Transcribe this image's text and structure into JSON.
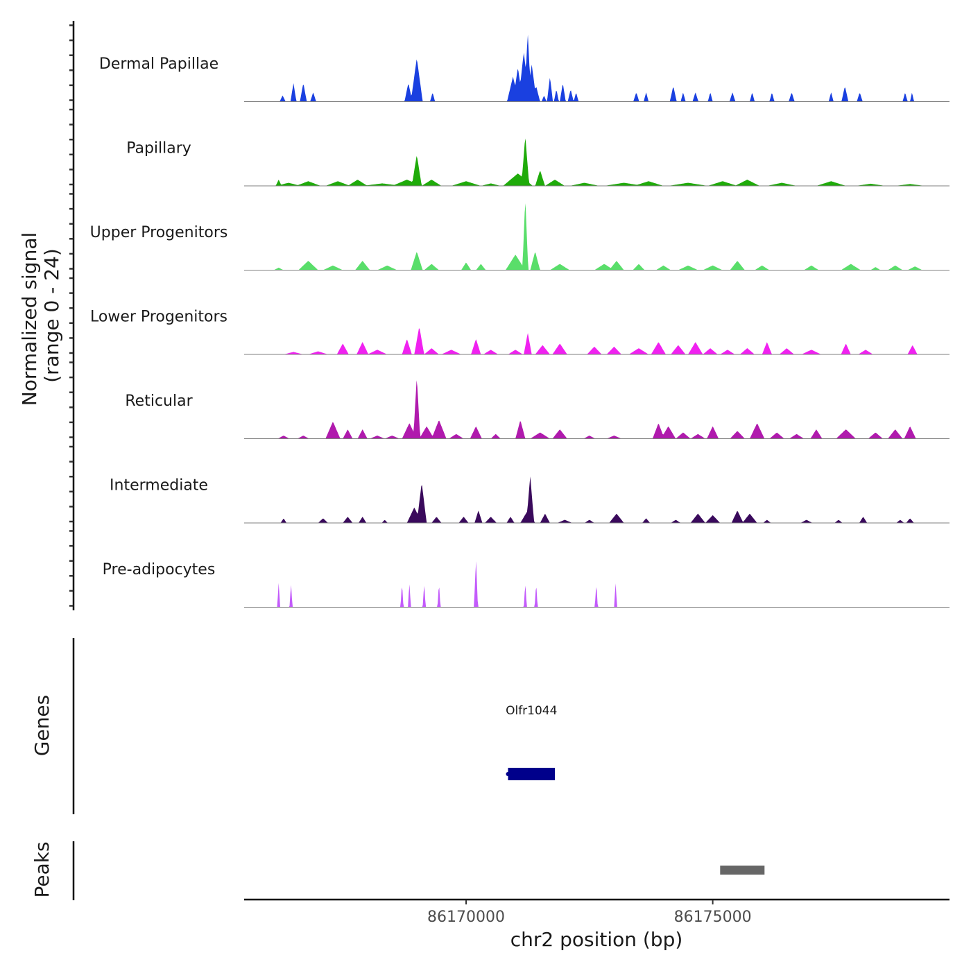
{
  "chart_data": {
    "type": "area",
    "title": "",
    "y_axis_title_line1": "Normalized signal",
    "y_axis_title_line2": "(range 0 - 24)",
    "ylim": [
      0,
      24
    ],
    "xlabel": "chr2 position (bp)",
    "xlim": [
      86165500,
      86179800
    ],
    "x_ticks": [
      86170000,
      86175000
    ],
    "x_tick_labels": [
      "86170000",
      "86175000"
    ],
    "tracks": [
      {
        "name": "Dermal Papillae",
        "color": "#1a40e0",
        "peaks": [
          [
            86166280,
            60,
            2
          ],
          [
            86166500,
            60,
            6
          ],
          [
            86166700,
            70,
            6
          ],
          [
            86166900,
            60,
            3
          ],
          [
            86168830,
            80,
            6
          ],
          [
            86169000,
            120,
            14
          ],
          [
            86169320,
            50,
            3
          ],
          [
            86170950,
            120,
            8
          ],
          [
            86171050,
            100,
            11
          ],
          [
            86171170,
            110,
            16
          ],
          [
            86171250,
            70,
            22
          ],
          [
            86171330,
            100,
            12
          ],
          [
            86171420,
            80,
            5
          ],
          [
            86171580,
            50,
            2
          ],
          [
            86171700,
            60,
            8
          ],
          [
            86171830,
            50,
            4
          ],
          [
            86171960,
            60,
            6
          ],
          [
            86172120,
            60,
            4
          ],
          [
            86172230,
            50,
            3
          ],
          [
            86173450,
            60,
            3
          ],
          [
            86173650,
            50,
            3
          ],
          [
            86174200,
            70,
            5
          ],
          [
            86174400,
            50,
            3
          ],
          [
            86174650,
            60,
            3
          ],
          [
            86174950,
            50,
            3
          ],
          [
            86175400,
            60,
            3
          ],
          [
            86175800,
            50,
            3
          ],
          [
            86176200,
            50,
            3
          ],
          [
            86176600,
            60,
            3
          ],
          [
            86177400,
            50,
            3
          ],
          [
            86177680,
            70,
            5
          ],
          [
            86177980,
            60,
            3
          ],
          [
            86178900,
            50,
            3
          ],
          [
            86179040,
            40,
            3
          ]
        ]
      },
      {
        "name": "Papillary",
        "color": "#1fab0a",
        "peaks": [
          [
            86166200,
            60,
            2
          ],
          [
            86166400,
            250,
            1
          ],
          [
            86166800,
            250,
            1.5
          ],
          [
            86167400,
            250,
            1.5
          ],
          [
            86167800,
            200,
            2
          ],
          [
            86168300,
            400,
            0.8
          ],
          [
            86168800,
            300,
            2
          ],
          [
            86169000,
            100,
            10
          ],
          [
            86169300,
            200,
            2
          ],
          [
            86170000,
            300,
            1.5
          ],
          [
            86170500,
            200,
            0.8
          ],
          [
            86171050,
            300,
            4
          ],
          [
            86171200,
            80,
            16
          ],
          [
            86171500,
            100,
            5
          ],
          [
            86171800,
            200,
            2
          ],
          [
            86172400,
            300,
            1
          ],
          [
            86173200,
            400,
            1
          ],
          [
            86173700,
            300,
            1.5
          ],
          [
            86174500,
            400,
            1
          ],
          [
            86175200,
            300,
            1.5
          ],
          [
            86175700,
            250,
            2
          ],
          [
            86176400,
            300,
            1
          ],
          [
            86177400,
            300,
            1.5
          ],
          [
            86178200,
            300,
            0.7
          ],
          [
            86179000,
            300,
            0.6
          ]
        ]
      },
      {
        "name": "Upper Progenitors",
        "color": "#59de6a",
        "peaks": [
          [
            86166200,
            100,
            0.8
          ],
          [
            86166800,
            200,
            3
          ],
          [
            86167300,
            200,
            1.5
          ],
          [
            86167900,
            150,
            3
          ],
          [
            86168400,
            200,
            1.5
          ],
          [
            86169000,
            120,
            6
          ],
          [
            86169300,
            150,
            2
          ],
          [
            86170000,
            100,
            2.5
          ],
          [
            86170300,
            100,
            2
          ],
          [
            86171000,
            200,
            5
          ],
          [
            86171200,
            60,
            23
          ],
          [
            86171400,
            100,
            6
          ],
          [
            86171900,
            200,
            2
          ],
          [
            86172800,
            200,
            2
          ],
          [
            86173050,
            150,
            3
          ],
          [
            86173500,
            120,
            2
          ],
          [
            86174000,
            150,
            1.5
          ],
          [
            86174500,
            200,
            1.5
          ],
          [
            86175000,
            200,
            1.5
          ],
          [
            86175500,
            150,
            3
          ],
          [
            86176000,
            150,
            1.5
          ],
          [
            86177000,
            150,
            1.5
          ],
          [
            86177800,
            200,
            2
          ],
          [
            86178300,
            100,
            1
          ],
          [
            86178700,
            150,
            1.5
          ],
          [
            86179100,
            150,
            1.2
          ]
        ]
      },
      {
        "name": "Lower Progenitors",
        "color": "#f021f0",
        "peaks": [
          [
            86166500,
            200,
            0.8
          ],
          [
            86167000,
            200,
            1
          ],
          [
            86167500,
            120,
            3.5
          ],
          [
            86167900,
            120,
            4
          ],
          [
            86168200,
            200,
            1.5
          ],
          [
            86168800,
            100,
            5
          ],
          [
            86169050,
            100,
            9
          ],
          [
            86169300,
            150,
            2
          ],
          [
            86169700,
            200,
            1.5
          ],
          [
            86170200,
            100,
            5
          ],
          [
            86170500,
            150,
            1.5
          ],
          [
            86171000,
            150,
            1.5
          ],
          [
            86171250,
            80,
            7
          ],
          [
            86171550,
            150,
            3
          ],
          [
            86171900,
            150,
            3.5
          ],
          [
            86172600,
            150,
            2.5
          ],
          [
            86173000,
            150,
            2.5
          ],
          [
            86173500,
            200,
            2
          ],
          [
            86173900,
            150,
            4
          ],
          [
            86174300,
            150,
            3
          ],
          [
            86174650,
            150,
            4
          ],
          [
            86174950,
            150,
            2
          ],
          [
            86175300,
            150,
            1.5
          ],
          [
            86175700,
            150,
            2
          ],
          [
            86176100,
            100,
            4
          ],
          [
            86176500,
            150,
            2
          ],
          [
            86177000,
            200,
            1.5
          ],
          [
            86177700,
            100,
            3.5
          ],
          [
            86178100,
            150,
            1.5
          ],
          [
            86179050,
            100,
            3
          ]
        ]
      },
      {
        "name": "Reticular",
        "color": "#b01aad",
        "peaks": [
          [
            86166300,
            120,
            1
          ],
          [
            86166700,
            120,
            1
          ],
          [
            86167300,
            150,
            5.5
          ],
          [
            86167600,
            100,
            3
          ],
          [
            86167900,
            100,
            3
          ],
          [
            86168200,
            150,
            1
          ],
          [
            86168500,
            150,
            1
          ],
          [
            86168850,
            150,
            5
          ],
          [
            86169000,
            70,
            20
          ],
          [
            86169200,
            150,
            4
          ],
          [
            86169450,
            150,
            6
          ],
          [
            86169800,
            150,
            1.5
          ],
          [
            86170200,
            120,
            4
          ],
          [
            86170600,
            100,
            1.5
          ],
          [
            86171100,
            100,
            6
          ],
          [
            86171500,
            200,
            2
          ],
          [
            86171900,
            150,
            3
          ],
          [
            86172500,
            120,
            1
          ],
          [
            86173000,
            150,
            1
          ],
          [
            86173900,
            120,
            5
          ],
          [
            86174100,
            150,
            4
          ],
          [
            86174400,
            150,
            2
          ],
          [
            86174700,
            150,
            1.5
          ],
          [
            86175000,
            120,
            4
          ],
          [
            86175500,
            150,
            2.5
          ],
          [
            86175900,
            150,
            5
          ],
          [
            86176300,
            150,
            2
          ],
          [
            86176700,
            150,
            1.5
          ],
          [
            86177100,
            120,
            3
          ],
          [
            86177700,
            200,
            3
          ],
          [
            86178300,
            150,
            2
          ],
          [
            86178700,
            150,
            3
          ],
          [
            86179000,
            120,
            4
          ]
        ]
      },
      {
        "name": "Intermediate",
        "color": "#3a0a5c",
        "peaks": [
          [
            86166300,
            60,
            1.5
          ],
          [
            86167100,
            100,
            1.5
          ],
          [
            86167600,
            100,
            2
          ],
          [
            86167900,
            80,
            2
          ],
          [
            86168350,
            60,
            1
          ],
          [
            86168950,
            150,
            5
          ],
          [
            86169100,
            100,
            13
          ],
          [
            86169400,
            100,
            2
          ],
          [
            86169950,
            100,
            2
          ],
          [
            86170250,
            80,
            4
          ],
          [
            86170500,
            120,
            2
          ],
          [
            86170900,
            80,
            2
          ],
          [
            86171250,
            150,
            4
          ],
          [
            86171300,
            80,
            15
          ],
          [
            86171600,
            100,
            3
          ],
          [
            86172000,
            150,
            1
          ],
          [
            86172500,
            100,
            1
          ],
          [
            86173050,
            150,
            3
          ],
          [
            86173650,
            80,
            1.5
          ],
          [
            86174250,
            100,
            1
          ],
          [
            86174700,
            150,
            3
          ],
          [
            86175000,
            150,
            2.5
          ],
          [
            86175500,
            120,
            4
          ],
          [
            86175750,
            150,
            3
          ],
          [
            86176100,
            80,
            1
          ],
          [
            86176900,
            120,
            1
          ],
          [
            86177550,
            80,
            1
          ],
          [
            86178050,
            80,
            2
          ],
          [
            86178800,
            80,
            1
          ],
          [
            86179000,
            80,
            1.5
          ]
        ]
      },
      {
        "name": "Pre-adipocytes",
        "color": "#c35bfb",
        "peaks": [
          [
            86166200,
            30,
            8
          ],
          [
            86166450,
            30,
            8
          ],
          [
            86168700,
            30,
            8
          ],
          [
            86168850,
            30,
            8
          ],
          [
            86169150,
            30,
            8
          ],
          [
            86169450,
            30,
            8
          ],
          [
            86170200,
            40,
            16
          ],
          [
            86171200,
            30,
            8
          ],
          [
            86171420,
            30,
            8
          ],
          [
            86172640,
            30,
            8
          ],
          [
            86173030,
            30,
            8
          ]
        ]
      }
    ],
    "genes_title": "Genes",
    "gene": {
      "name": "Olfr1044",
      "start": 86170850,
      "end": 86171800,
      "color": "#00008b"
    },
    "peaks_title": "Peaks",
    "peak_region": {
      "start": 86175150,
      "end": 86176050,
      "color": "#666666"
    }
  }
}
